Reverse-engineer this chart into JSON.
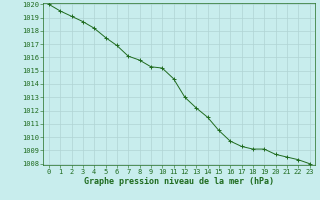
{
  "x": [
    0,
    1,
    2,
    3,
    4,
    5,
    6,
    7,
    8,
    9,
    10,
    11,
    12,
    13,
    14,
    15,
    16,
    17,
    18,
    19,
    20,
    21,
    22,
    23
  ],
  "y": [
    1020.0,
    1019.5,
    1019.1,
    1018.7,
    1018.2,
    1017.5,
    1016.9,
    1016.1,
    1015.8,
    1015.3,
    1015.2,
    1014.4,
    1013.0,
    1012.2,
    1011.5,
    1010.5,
    1009.7,
    1009.3,
    1009.1,
    1009.1,
    1008.7,
    1008.5,
    1008.3,
    1008.0
  ],
  "line_color": "#1f6b1f",
  "marker": "+",
  "marker_color": "#1f6b1f",
  "bg_color": "#c8eded",
  "grid_color": "#b0d4d4",
  "xlabel": "Graphe pression niveau de la mer (hPa)",
  "xlabel_color": "#1f6b1f",
  "tick_color": "#1f6b1f",
  "ylim_min": 1008,
  "ylim_max": 1020,
  "xlim_min": 0,
  "xlim_max": 23,
  "yticks": [
    1008,
    1009,
    1010,
    1011,
    1012,
    1013,
    1014,
    1015,
    1016,
    1017,
    1018,
    1019,
    1020
  ],
  "xticks": [
    0,
    1,
    2,
    3,
    4,
    5,
    6,
    7,
    8,
    9,
    10,
    11,
    12,
    13,
    14,
    15,
    16,
    17,
    18,
    19,
    20,
    21,
    22,
    23
  ],
  "tick_fontsize": 5,
  "xlabel_fontsize": 6,
  "linewidth": 0.7,
  "markersize": 3.5,
  "markeredgewidth": 0.7
}
